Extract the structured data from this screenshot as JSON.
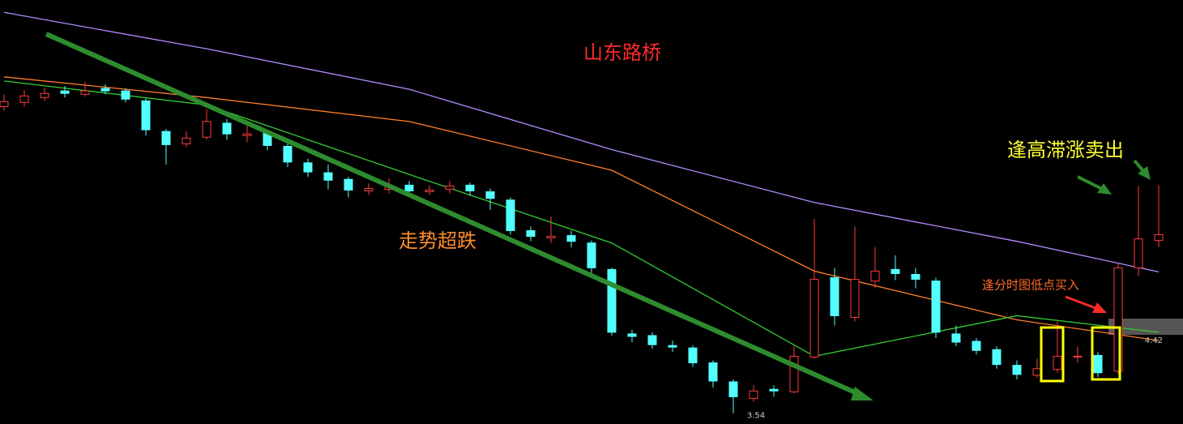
{
  "chart_data": {
    "type": "candlestick",
    "title": "山东路桥",
    "annotations": [
      "走势超跌",
      "逢高滞涨卖出",
      "逢分时图低点买入"
    ],
    "ylim": [
      3.41,
      8.54
    ],
    "up_color": "#ff3c3c",
    "down_color": "#54ffff",
    "open": [
      7.25,
      7.3,
      7.36,
      7.44,
      7.4,
      7.47,
      7.44,
      7.32,
      6.95,
      6.8,
      6.88,
      7.05,
      6.9,
      6.93,
      6.77,
      6.57,
      6.45,
      6.37,
      6.23,
      6.25,
      6.3,
      6.22,
      6.25,
      6.3,
      6.22,
      6.12,
      5.75,
      5.66,
      5.69,
      5.6,
      5.28,
      4.5,
      4.48,
      4.36,
      4.33,
      4.15,
      3.92,
      3.72,
      3.83,
      3.8,
      4.22,
      5.18,
      4.7,
      5.14,
      5.28,
      5.22,
      5.14,
      4.5,
      4.41,
      4.31,
      4.12,
      4.0,
      4.07,
      4.22,
      4.24,
      4.05,
      5.3,
      5.63
    ],
    "high": [
      7.4,
      7.45,
      7.48,
      7.5,
      7.55,
      7.52,
      7.47,
      7.35,
      6.98,
      6.95,
      7.22,
      7.1,
      7.02,
      6.96,
      6.8,
      6.62,
      6.55,
      6.4,
      6.32,
      6.38,
      6.35,
      6.3,
      6.35,
      6.33,
      6.26,
      6.15,
      5.8,
      5.92,
      5.75,
      5.63,
      5.3,
      4.55,
      4.52,
      4.42,
      4.36,
      4.18,
      3.95,
      3.88,
      3.88,
      4.35,
      5.89,
      5.3,
      5.8,
      5.55,
      5.45,
      5.3,
      5.18,
      4.6,
      4.45,
      4.35,
      4.18,
      4.2,
      4.65,
      4.35,
      4.28,
      5.35,
      6.29,
      6.3
    ],
    "low": [
      7.2,
      7.25,
      7.32,
      7.36,
      7.37,
      7.4,
      7.3,
      6.9,
      6.55,
      6.76,
      6.85,
      6.85,
      6.82,
      6.72,
      6.52,
      6.4,
      6.25,
      6.15,
      6.18,
      6.2,
      6.18,
      6.18,
      6.2,
      6.17,
      6.0,
      5.7,
      5.62,
      5.6,
      5.55,
      5.2,
      4.48,
      4.4,
      4.32,
      4.28,
      4.1,
      3.85,
      3.54,
      3.68,
      3.74,
      3.78,
      4.2,
      4.6,
      4.65,
      5.05,
      5.15,
      5.05,
      4.45,
      4.35,
      4.25,
      4.08,
      3.95,
      3.97,
      4.03,
      4.15,
      3.98,
      4.02,
      5.2,
      5.55
    ],
    "close": [
      7.31,
      7.38,
      7.41,
      7.41,
      7.44,
      7.44,
      7.34,
      6.97,
      6.79,
      6.87,
      7.07,
      6.92,
      6.92,
      6.78,
      6.58,
      6.46,
      6.36,
      6.24,
      6.26,
      6.29,
      6.23,
      6.24,
      6.29,
      6.23,
      6.14,
      5.75,
      5.68,
      5.68,
      5.62,
      5.3,
      4.52,
      4.47,
      4.37,
      4.34,
      4.15,
      3.93,
      3.74,
      3.81,
      3.81,
      4.23,
      5.16,
      4.72,
      5.16,
      5.26,
      5.23,
      5.16,
      4.52,
      4.4,
      4.3,
      4.13,
      4.01,
      4.08,
      4.23,
      4.23,
      4.03,
      5.3,
      5.65,
      5.7
    ],
    "overlays": [
      {
        "color": "#b48cff",
        "x": [
          0,
          10,
          20,
          30,
          40,
          50,
          57
        ],
        "values": [
          8.39,
          7.95,
          7.46,
          6.73,
          6.09,
          5.62,
          5.25
        ]
      },
      {
        "color": "#ff7f2a",
        "x": [
          0,
          10,
          20,
          30,
          40,
          50,
          57
        ],
        "values": [
          7.61,
          7.36,
          7.07,
          6.48,
          5.26,
          4.67,
          4.42
        ]
      },
      {
        "color": "#33cc33",
        "x": [
          0,
          10,
          20,
          30,
          40,
          50,
          57
        ],
        "values": [
          7.56,
          7.27,
          6.43,
          5.6,
          4.23,
          4.72,
          4.52
        ]
      }
    ],
    "price_labels": [
      3.54,
      4.42
    ]
  }
}
